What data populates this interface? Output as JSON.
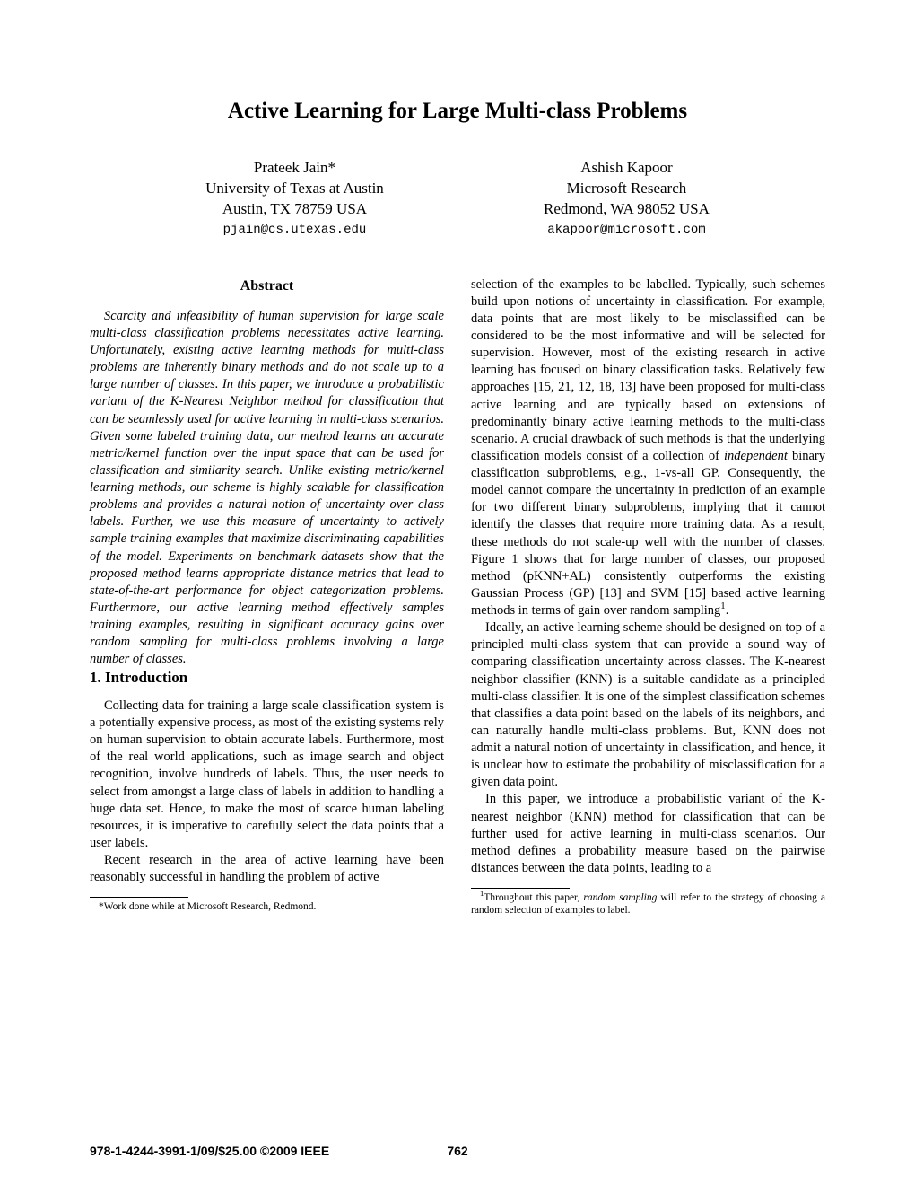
{
  "title": "Active Learning for Large Multi-class Problems",
  "authors": [
    {
      "name": "Prateek Jain*",
      "affil": "University of Texas at Austin",
      "addr": "Austin, TX 78759 USA",
      "email": "pjain@cs.utexas.edu"
    },
    {
      "name": "Ashish Kapoor",
      "affil": "Microsoft Research",
      "addr": "Redmond, WA 98052 USA",
      "email": "akapoor@microsoft.com"
    }
  ],
  "abstract_heading": "Abstract",
  "abstract": "Scarcity and infeasibility of human supervision for large scale multi-class classification problems necessitates active learning. Unfortunately, existing active learning methods for multi-class problems are inherently binary methods and do not scale up to a large number of classes. In this paper, we introduce a probabilistic variant of the K-Nearest Neighbor method for classification that can be seamlessly used for active learning in multi-class scenarios. Given some labeled training data, our method learns an accurate metric/kernel function over the input space that can be used for classification and similarity search. Unlike existing metric/kernel learning methods, our scheme is highly scalable for classification problems and provides a natural notion of uncertainty over class labels. Further, we use this measure of uncertainty to actively sample training examples that maximize discriminating capabilities of the model. Experiments on benchmark datasets show that the proposed method learns appropriate distance metrics that lead to state-of-the-art performance for object categorization problems. Furthermore, our active learning method effectively samples training examples, resulting in significant accuracy gains over random sampling for multi-class problems involving a large number of classes.",
  "section1_heading": "1. Introduction",
  "intro_p1": "Collecting data for training a large scale classification system is a potentially expensive process, as most of the existing systems rely on human supervision to obtain accurate labels. Furthermore, most of the real world applications, such as image search and object recognition, involve hundreds of labels. Thus, the user needs to select from amongst a large class of labels in addition to handling a huge data set. Hence, to make the most of scarce human labeling resources, it is imperative to carefully select the data points that a user labels.",
  "intro_p2": "Recent research in the area of active learning have been reasonably successful in handling the problem of active",
  "footnote_left": "*Work done while at Microsoft Research, Redmond.",
  "col2_p1a": "selection of the examples to be labelled. Typically, such schemes build upon notions of uncertainty in classification. For example, data points that are most likely to be misclassified can be considered to be the most informative and will be selected for supervision. However, most of the existing research in active learning has focused on binary classification tasks. Relatively few approaches [15, 21, 12, 18, 13] have been proposed for multi-class active learning and are typically based on extensions of predominantly binary active learning methods to the multi-class scenario. A crucial drawback of such methods is that the underlying classification models consist of a collection of ",
  "col2_p1_italic": "independent",
  "col2_p1b": " binary classification subproblems, e.g., 1-vs-all GP. Consequently, the model cannot compare the uncertainty in prediction of an example for two different binary subproblems, implying that it cannot identify the classes that require more training data. As a result, these methods do not scale-up well with the number of classes. Figure 1 shows that for large number of classes, our proposed method (pKNN+AL) consistently outperforms the existing Gaussian Process (GP) [13] and SVM [15] based active learning methods in terms of gain over random sampling",
  "col2_p1_sup": "1",
  "col2_p1c": ".",
  "col2_p2": "Ideally, an active learning scheme should be designed on top of a principled multi-class system that can provide a sound way of comparing classification uncertainty across classes. The K-nearest neighbor classifier (KNN) is a suitable candidate as a principled multi-class classifier. It is one of the simplest classification schemes that classifies a data point based on the labels of its neighbors, and can naturally handle multi-class problems. But, KNN does not admit a natural notion of uncertainty in classification, and hence, it is unclear how to estimate the probability of misclassification for a given data point.",
  "col2_p3": "In this paper, we introduce a probabilistic variant of the K-nearest neighbor (KNN) method for classification that can be further used for active learning in multi-class scenarios. Our method defines a probability measure based on the pairwise distances between the data points, leading to a",
  "footnote_right_a": "Throughout this paper, ",
  "footnote_right_italic": "random sampling",
  "footnote_right_b": " will refer to the strategy of choosing a random selection of examples to label.",
  "footnote_right_sup": "1",
  "copyright": "978-1-4244-3991-1/09/$25.00 ©2009 IEEE",
  "page_number": "762"
}
